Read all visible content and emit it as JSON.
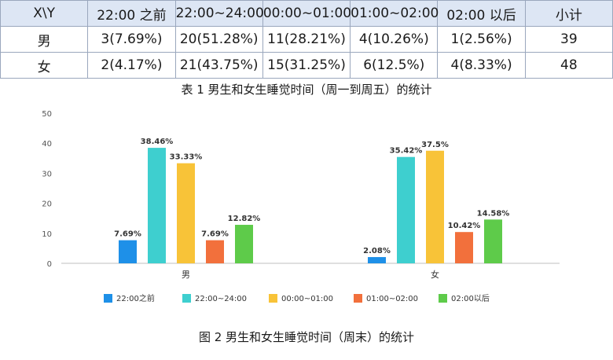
{
  "table1": {
    "headers": [
      "X\\Y",
      "22:00 之前",
      "22:00~24:00",
      "00:00~01:00",
      "01:00~02:00",
      "02:00 以后",
      "小计"
    ],
    "rows": [
      [
        "男",
        "3(7.69%)",
        "20(51.28%)",
        "11(28.21%)",
        "4(10.26%)",
        "1(2.56%)",
        "39"
      ],
      [
        "女",
        "2(4.17%)",
        "21(43.75%)",
        "15(31.25%)",
        "6(12.5%)",
        "4(8.33%)",
        "48"
      ]
    ],
    "caption": "表 1 男生和女生睡觉时间（周一到周五）的统计"
  },
  "chart_data": {
    "type": "bar",
    "categories": [
      "男",
      "女"
    ],
    "ylim": [
      0,
      50
    ],
    "yticks": [
      0,
      10,
      20,
      30,
      40,
      50
    ],
    "grid": false,
    "legend_position": "bottom",
    "series": [
      {
        "name": "22:00之前",
        "color": "#1e90e8",
        "values": [
          7.69,
          2.08
        ],
        "labels": [
          "7.69%",
          "2.08%"
        ]
      },
      {
        "name": "22:00~24:00",
        "color": "#3ecfcf",
        "values": [
          38.46,
          35.42
        ],
        "labels": [
          "38.46%",
          "35.42%"
        ]
      },
      {
        "name": "00:00~01:00",
        "color": "#f8c338",
        "values": [
          33.33,
          37.5
        ],
        "labels": [
          "33.33%",
          "37.5%"
        ]
      },
      {
        "name": "01:00~02:00",
        "color": "#f2703c",
        "values": [
          7.69,
          10.42
        ],
        "labels": [
          "7.69%",
          "10.42%"
        ]
      },
      {
        "name": "02:00以后",
        "color": "#5ecb4a",
        "values": [
          12.82,
          14.58
        ],
        "labels": [
          "12.82%",
          "14.58%"
        ]
      }
    ]
  },
  "caption2": "图 2 男生和女生睡觉时间（周末）的统计"
}
